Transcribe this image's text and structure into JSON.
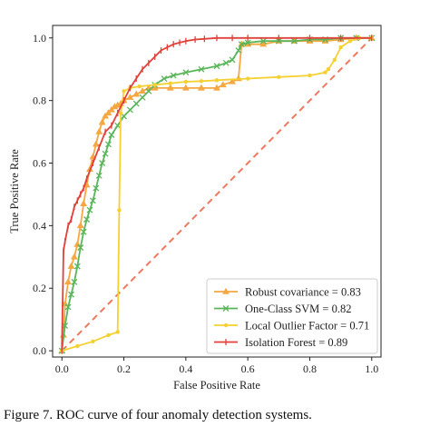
{
  "caption": "Figure 7. ROC curve of four anomaly detection systems.",
  "chart_data": {
    "type": "line",
    "title": "",
    "xlabel": "False Positive Rate",
    "ylabel": "True Positive Rate",
    "xlim": [
      -0.03,
      1.03
    ],
    "ylim": [
      -0.02,
      1.04
    ],
    "xticks": [
      "0.0",
      "0.2",
      "0.4",
      "0.6",
      "0.8",
      "1.0"
    ],
    "yticks": [
      "0.0",
      "0.2",
      "0.4",
      "0.6",
      "0.8",
      "1.0"
    ],
    "grid": false,
    "legend_position": "lower-right",
    "baseline": {
      "style": "dashed",
      "color": "#f07860",
      "x": [
        0,
        1
      ],
      "y": [
        0,
        1
      ]
    },
    "series": [
      {
        "name": "Robust covariance = 0.83",
        "color": "#f5a742",
        "marker": "triangle",
        "x": [
          0,
          0.005,
          0.01,
          0.02,
          0.03,
          0.04,
          0.05,
          0.06,
          0.07,
          0.08,
          0.09,
          0.1,
          0.11,
          0.12,
          0.13,
          0.14,
          0.15,
          0.16,
          0.17,
          0.18,
          0.19,
          0.2,
          0.22,
          0.24,
          0.26,
          0.28,
          0.3,
          0.35,
          0.4,
          0.45,
          0.5,
          0.52,
          0.55,
          0.57,
          0.58,
          0.6,
          0.65,
          0.7,
          0.75,
          0.8,
          0.85,
          0.9,
          0.95,
          1.0
        ],
        "y": [
          0,
          0.05,
          0.15,
          0.22,
          0.27,
          0.3,
          0.34,
          0.4,
          0.47,
          0.53,
          0.58,
          0.62,
          0.66,
          0.7,
          0.73,
          0.75,
          0.76,
          0.77,
          0.78,
          0.785,
          0.79,
          0.8,
          0.81,
          0.82,
          0.83,
          0.84,
          0.84,
          0.84,
          0.84,
          0.84,
          0.84,
          0.85,
          0.86,
          0.87,
          0.98,
          0.98,
          0.98,
          0.99,
          0.99,
          0.99,
          0.99,
          0.995,
          1.0,
          1.0
        ]
      },
      {
        "name": "One-Class SVM = 0.82",
        "color": "#5ab55a",
        "marker": "x",
        "x": [
          0,
          0.01,
          0.02,
          0.03,
          0.04,
          0.05,
          0.06,
          0.07,
          0.08,
          0.09,
          0.1,
          0.11,
          0.12,
          0.13,
          0.14,
          0.15,
          0.16,
          0.18,
          0.2,
          0.22,
          0.24,
          0.26,
          0.28,
          0.3,
          0.33,
          0.36,
          0.4,
          0.45,
          0.5,
          0.53,
          0.55,
          0.57,
          0.58,
          0.6,
          0.65,
          0.7,
          0.75,
          0.8,
          0.85,
          0.9,
          0.95,
          1.0
        ],
        "y": [
          0,
          0.08,
          0.14,
          0.18,
          0.22,
          0.27,
          0.33,
          0.38,
          0.42,
          0.45,
          0.48,
          0.52,
          0.56,
          0.6,
          0.63,
          0.66,
          0.69,
          0.72,
          0.75,
          0.77,
          0.79,
          0.81,
          0.83,
          0.85,
          0.87,
          0.88,
          0.89,
          0.9,
          0.91,
          0.92,
          0.93,
          0.96,
          0.98,
          0.985,
          0.99,
          0.99,
          0.99,
          0.995,
          0.995,
          1.0,
          1.0,
          1.0
        ]
      },
      {
        "name": "Local Outlier Factor = 0.71",
        "color": "#f5d033",
        "marker": "dot",
        "x": [
          0,
          0.05,
          0.1,
          0.15,
          0.18,
          0.185,
          0.19,
          0.2,
          0.22,
          0.25,
          0.3,
          0.35,
          0.4,
          0.45,
          0.5,
          0.6,
          0.7,
          0.8,
          0.85,
          0.86,
          0.88,
          0.9,
          0.93,
          0.96,
          1.0
        ],
        "y": [
          0,
          0.015,
          0.03,
          0.05,
          0.06,
          0.45,
          0.76,
          0.83,
          0.84,
          0.845,
          0.85,
          0.855,
          0.86,
          0.862,
          0.865,
          0.87,
          0.875,
          0.88,
          0.89,
          0.9,
          0.93,
          0.97,
          0.99,
          1.0,
          1.0
        ]
      },
      {
        "name": "Isolation Forest = 0.89",
        "color": "#e0413a",
        "marker": "bar",
        "x": [
          0,
          0.005,
          0.01,
          0.02,
          0.03,
          0.04,
          0.05,
          0.06,
          0.07,
          0.08,
          0.1,
          0.12,
          0.14,
          0.16,
          0.18,
          0.2,
          0.22,
          0.24,
          0.26,
          0.28,
          0.3,
          0.32,
          0.34,
          0.36,
          0.38,
          0.4,
          0.43,
          0.46,
          0.5,
          0.55,
          0.6,
          0.7,
          0.8,
          0.9,
          1.0
        ],
        "y": [
          0,
          0.32,
          0.35,
          0.4,
          0.42,
          0.46,
          0.48,
          0.5,
          0.52,
          0.55,
          0.6,
          0.65,
          0.7,
          0.72,
          0.76,
          0.8,
          0.84,
          0.87,
          0.9,
          0.92,
          0.94,
          0.96,
          0.97,
          0.98,
          0.985,
          0.99,
          0.995,
          0.997,
          1.0,
          1.0,
          1.0,
          1.0,
          1.0,
          1.0,
          1.0
        ]
      }
    ]
  }
}
